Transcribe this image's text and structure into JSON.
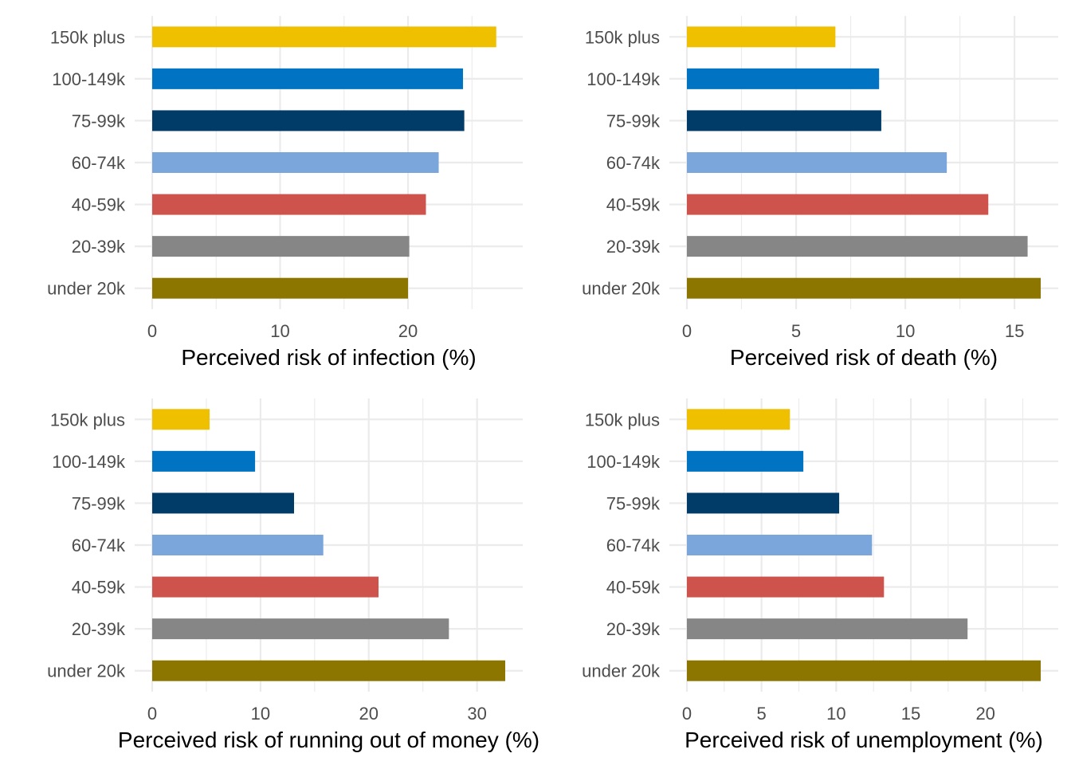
{
  "chart_data": [
    {
      "type": "bar",
      "orientation": "horizontal",
      "categories": [
        "under 20k",
        "20-39k",
        "40-59k",
        "60-74k",
        "75-99k",
        "100-149k",
        "150k plus"
      ],
      "values": [
        20.0,
        20.1,
        21.4,
        22.4,
        24.4,
        24.3,
        26.9
      ],
      "xlabel": "Perceived risk of infection (%)",
      "xlim": [
        0,
        27.6
      ],
      "xticks": [
        0,
        10,
        20
      ],
      "grid": true
    },
    {
      "type": "bar",
      "orientation": "horizontal",
      "categories": [
        "under 20k",
        "20-39k",
        "40-59k",
        "60-74k",
        "75-99k",
        "100-149k",
        "150k plus"
      ],
      "values": [
        16.2,
        15.6,
        13.8,
        11.9,
        8.9,
        8.8,
        6.8
      ],
      "xlabel": "Perceived risk of death (%)",
      "xlim": [
        0,
        16.2
      ],
      "xticks": [
        0,
        5,
        10,
        15
      ],
      "grid": true
    },
    {
      "type": "bar",
      "orientation": "horizontal",
      "categories": [
        "under 20k",
        "20-39k",
        "40-59k",
        "60-74k",
        "75-99k",
        "100-149k",
        "150k plus"
      ],
      "values": [
        32.6,
        27.4,
        20.9,
        15.8,
        13.1,
        9.5,
        5.3
      ],
      "xlabel": "Perceived risk of running out of money (%)",
      "xlim": [
        0,
        32.6
      ],
      "xticks": [
        0,
        10,
        20,
        30
      ],
      "grid": true
    },
    {
      "type": "bar",
      "orientation": "horizontal",
      "categories": [
        "under 20k",
        "20-39k",
        "40-59k",
        "60-74k",
        "75-99k",
        "100-149k",
        "150k plus"
      ],
      "values": [
        23.7,
        18.8,
        13.2,
        12.4,
        10.2,
        7.8,
        6.9
      ],
      "xlabel": "Perceived risk of unemployment (%)",
      "xlim": [
        0,
        23.7
      ],
      "xticks": [
        0,
        5,
        10,
        15,
        20
      ],
      "grid": true
    }
  ],
  "colors": [
    "#8c7600",
    "#868686",
    "#cd534c",
    "#7aa6dc",
    "#003c67",
    "#0073c2",
    "#efc000"
  ]
}
